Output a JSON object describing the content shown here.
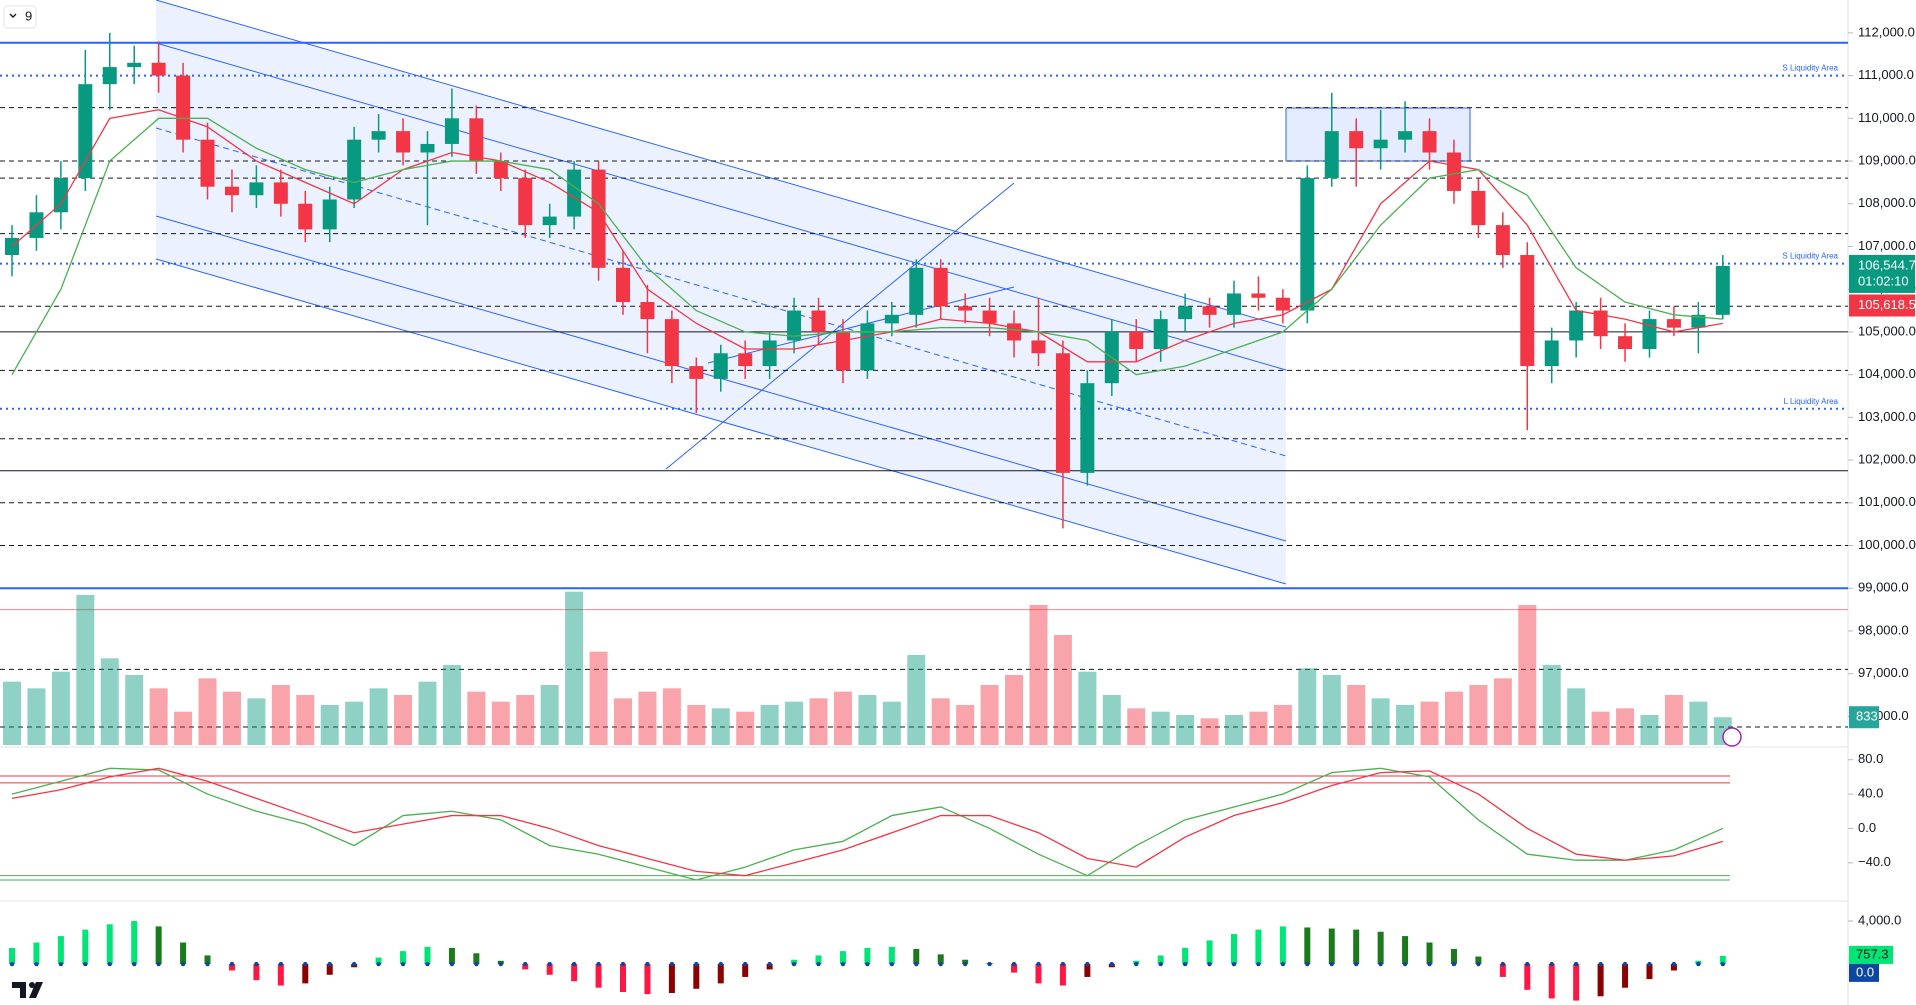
{
  "chart_data": {
    "type": "candlestick",
    "interval": "9",
    "ylim": [
      95330,
      112770
    ],
    "yticks": [
      {
        "value": 96000,
        "label": "96,000.0"
      },
      {
        "value": 97000,
        "label": "97,000.0"
      },
      {
        "value": 98000,
        "label": "98,000.0"
      },
      {
        "value": 99000,
        "label": "99,000.0"
      },
      {
        "value": 100000,
        "label": "100,000.0"
      },
      {
        "value": 101000,
        "label": "101,000.0"
      },
      {
        "value": 102000,
        "label": "102,000.0"
      },
      {
        "value": 103000,
        "label": "103,000.0"
      },
      {
        "value": 104000,
        "label": "104,000.0"
      },
      {
        "value": 105000,
        "label": "105,000.0"
      },
      {
        "value": 106000,
        "label": "106,000.0"
      },
      {
        "value": 107000,
        "label": "107,000.0"
      },
      {
        "value": 108000,
        "label": "108,000.0"
      },
      {
        "value": 109000,
        "label": "109,000.0"
      },
      {
        "value": 110000,
        "label": "110,000.0"
      },
      {
        "value": 111000,
        "label": "111,000.0"
      },
      {
        "value": 112000,
        "label": "112,000.0"
      }
    ],
    "up_color": "#089981",
    "down_color": "#f23645",
    "candles": [
      [
        106800,
        107500,
        106300,
        107200
      ],
      [
        107200,
        108200,
        106900,
        107800
      ],
      [
        107800,
        109000,
        107400,
        108600
      ],
      [
        108600,
        111600,
        108300,
        110800
      ],
      [
        110800,
        112000,
        110200,
        111200
      ],
      [
        111200,
        111700,
        110800,
        111300
      ],
      [
        111300,
        111800,
        110600,
        111000
      ],
      [
        111000,
        111300,
        109200,
        109500
      ],
      [
        109500,
        109900,
        108100,
        108400
      ],
      [
        108400,
        108800,
        107800,
        108200
      ],
      [
        108200,
        108900,
        107900,
        108500
      ],
      [
        108500,
        108800,
        107700,
        108000
      ],
      [
        108000,
        108300,
        107100,
        107400
      ],
      [
        107400,
        108400,
        107100,
        108100
      ],
      [
        108100,
        109800,
        107900,
        109500
      ],
      [
        109500,
        110100,
        109200,
        109700
      ],
      [
        109700,
        110000,
        108900,
        109200
      ],
      [
        109200,
        109700,
        107500,
        109400
      ],
      [
        109400,
        110700,
        109100,
        110000
      ],
      [
        110000,
        110300,
        108700,
        109000
      ],
      [
        109000,
        109200,
        108300,
        108600
      ],
      [
        108600,
        108800,
        107200,
        107500
      ],
      [
        107500,
        108000,
        107200,
        107700
      ],
      [
        107700,
        109000,
        107400,
        108800
      ],
      [
        108800,
        109000,
        106200,
        106500
      ],
      [
        106500,
        106900,
        105400,
        105700
      ],
      [
        105700,
        106100,
        104500,
        105300
      ],
      [
        105300,
        105500,
        103800,
        104200
      ],
      [
        104200,
        104400,
        103100,
        103900
      ],
      [
        103900,
        104700,
        103600,
        104500
      ],
      [
        104500,
        104800,
        103900,
        104200
      ],
      [
        104200,
        105000,
        103900,
        104800
      ],
      [
        104800,
        105800,
        104500,
        105500
      ],
      [
        105500,
        105800,
        104700,
        105000
      ],
      [
        105000,
        105300,
        103800,
        104100
      ],
      [
        104100,
        105500,
        103900,
        105200
      ],
      [
        105200,
        105700,
        104900,
        105400
      ],
      [
        105400,
        106700,
        105100,
        106500
      ],
      [
        106500,
        106700,
        105300,
        105600
      ],
      [
        105600,
        105900,
        105200,
        105500
      ],
      [
        105500,
        105800,
        104900,
        105200
      ],
      [
        105200,
        105500,
        104400,
        104800
      ],
      [
        104800,
        105800,
        104200,
        104500
      ],
      [
        104500,
        104800,
        100400,
        101700
      ],
      [
        101700,
        104100,
        101400,
        103800
      ],
      [
        103800,
        105300,
        103500,
        105000
      ],
      [
        105000,
        105300,
        104300,
        104600
      ],
      [
        104600,
        105500,
        104300,
        105300
      ],
      [
        105300,
        105900,
        105000,
        105600
      ],
      [
        105600,
        105800,
        105100,
        105400
      ],
      [
        105400,
        106200,
        105100,
        105900
      ],
      [
        105900,
        106300,
        105500,
        105800
      ],
      [
        105800,
        106000,
        105200,
        105500
      ],
      [
        105500,
        108900,
        105200,
        108600
      ],
      [
        108600,
        110600,
        108400,
        109700
      ],
      [
        109700,
        110000,
        108400,
        109300
      ],
      [
        109300,
        110200,
        108800,
        109500
      ],
      [
        109500,
        110400,
        109200,
        109700
      ],
      [
        109700,
        110000,
        108800,
        109200
      ],
      [
        109200,
        109500,
        108000,
        108300
      ],
      [
        108300,
        108600,
        107200,
        107500
      ],
      [
        107500,
        107800,
        106500,
        106800
      ],
      [
        106800,
        107100,
        102700,
        104200
      ],
      [
        104200,
        105100,
        103800,
        104800
      ],
      [
        104800,
        105700,
        104400,
        105500
      ],
      [
        105500,
        105800,
        104600,
        104900
      ],
      [
        104900,
        105200,
        104300,
        104600
      ],
      [
        104600,
        105500,
        104400,
        105300
      ],
      [
        105300,
        105600,
        104900,
        105100
      ],
      [
        105100,
        105700,
        104500,
        105400
      ],
      [
        105400,
        106800,
        105300,
        106544.7
      ]
    ],
    "moving_averages": [
      {
        "color": "#f23645",
        "values": [
          107000,
          108000,
          110000,
          110200,
          109800,
          109000,
          108500,
          108000,
          108800,
          109200,
          109000,
          108500,
          107800,
          106000,
          105200,
          104600,
          104600,
          104800,
          105000,
          105300,
          105200,
          105000,
          104300,
          104300,
          104800,
          105200,
          105400,
          106000,
          108000,
          109000,
          108800,
          107500,
          105500,
          105300,
          105000,
          105200
        ]
      },
      {
        "color": "#4caf50",
        "values": [
          104000,
          106000,
          109000,
          110000,
          110000,
          109300,
          108800,
          108500,
          108800,
          109000,
          109000,
          108800,
          108000,
          106500,
          105500,
          105000,
          104900,
          105000,
          105000,
          105100,
          105100,
          105000,
          104800,
          104000,
          104200,
          104600,
          105000,
          106000,
          107500,
          108600,
          108800,
          108200,
          106500,
          105700,
          105400,
          105300
        ]
      }
    ],
    "levels": [
      {
        "value": 111770,
        "style": "solid-blue"
      },
      {
        "value": 111000,
        "style": "dotted-blue",
        "label": "S Liquidity Area"
      },
      {
        "value": 110250,
        "style": "dashed"
      },
      {
        "value": 109000,
        "style": "dashed"
      },
      {
        "value": 108600,
        "style": "dashed"
      },
      {
        "value": 107300,
        "style": "dashed"
      },
      {
        "value": 106600,
        "style": "dotted-blue",
        "label": "S Liquidity Area"
      },
      {
        "value": 105600,
        "style": "dashed"
      },
      {
        "value": 105000,
        "style": "solid"
      },
      {
        "value": 104100,
        "style": "dashed"
      },
      {
        "value": 103200,
        "style": "dotted-blue",
        "label": "L Liquidity Area"
      },
      {
        "value": 102500,
        "style": "dashed"
      },
      {
        "value": 101750,
        "style": "solid"
      },
      {
        "value": 101000,
        "style": "dashed"
      },
      {
        "value": 100000,
        "style": "dashed"
      },
      {
        "value": 99000,
        "style": "solid-blue"
      },
      {
        "value": 98500,
        "style": "red"
      },
      {
        "value": 97100,
        "style": "dashed"
      },
      {
        "value": 95750,
        "style": "dashed"
      }
    ],
    "last_price": {
      "value": 106544.7,
      "label": "106,544.7",
      "timer": "01:02:10"
    },
    "reference_price": {
      "value": 105618.5,
      "label": "105,618.5"
    },
    "volume": {
      "vlim": [
        0,
        4800
      ],
      "last": 833,
      "values": [
        1900,
        1700,
        2200,
        4500,
        2600,
        2100,
        1700,
        1000,
        2000,
        1600,
        1400,
        1800,
        1500,
        1200,
        1300,
        1700,
        1500,
        1900,
        2400,
        1600,
        1300,
        1500,
        1800,
        4600,
        2800,
        1400,
        1600,
        1700,
        1200,
        1100,
        1000,
        1200,
        1300,
        1400,
        1600,
        1500,
        1300,
        2700,
        1400,
        1200,
        1800,
        2100,
        4200,
        3300,
        2200,
        1500,
        1100,
        1000,
        900,
        800,
        900,
        1000,
        1200,
        2300,
        2100,
        1800,
        1400,
        1200,
        1300,
        1600,
        1800,
        2000,
        4200,
        2400,
        1700,
        1000,
        1100,
        900,
        1500,
        1300,
        833
      ]
    },
    "oscillator": {
      "ylim": [
        -81,
        89
      ],
      "yticks": [
        {
          "value": 80,
          "label": "80.0"
        },
        {
          "value": 40,
          "label": "40.0"
        },
        {
          "value": 0,
          "label": "0.0"
        },
        {
          "value": -40,
          "label": "−40.0"
        }
      ],
      "levels": [
        61,
        53,
        -55,
        -60
      ],
      "series": [
        {
          "color": "#4caf50",
          "values": [
            40,
            55,
            70,
            68,
            40,
            20,
            5,
            -20,
            15,
            20,
            10,
            -20,
            -30,
            -45,
            -60,
            -45,
            -25,
            -15,
            15,
            25,
            0,
            -30,
            -55,
            -20,
            10,
            25,
            40,
            65,
            70,
            60,
            10,
            -30,
            -37,
            -37,
            -25,
            0
          ]
        },
        {
          "color": "#f23645",
          "values": [
            35,
            45,
            60,
            70,
            55,
            35,
            15,
            -5,
            5,
            15,
            15,
            0,
            -20,
            -35,
            -50,
            -55,
            -40,
            -25,
            -5,
            15,
            15,
            -5,
            -35,
            -45,
            -10,
            15,
            30,
            50,
            65,
            67,
            40,
            0,
            -30,
            -37,
            -32,
            -15
          ]
        }
      ]
    },
    "histogram": {
      "ylim": [
        -3810,
        5490
      ],
      "yticks": [
        {
          "value": 4000,
          "label": "4,000.0"
        }
      ],
      "values": [
        1500,
        2000,
        2600,
        3200,
        3700,
        4000,
        3500,
        2000,
        800,
        -600,
        -1500,
        -2000,
        -1800,
        -1000,
        -300,
        600,
        1200,
        1600,
        1500,
        1000,
        300,
        -500,
        -1000,
        -1600,
        -2200,
        -2600,
        -2800,
        -2700,
        -2300,
        -1800,
        -1200,
        -500,
        400,
        800,
        1200,
        1500,
        1600,
        1400,
        900,
        400,
        100,
        -800,
        -1800,
        -2000,
        -1200,
        -300,
        300,
        800,
        1500,
        2200,
        2800,
        3200,
        3500,
        3400,
        3300,
        3200,
        3000,
        2600,
        2000,
        1400,
        700,
        -1200,
        -2400,
        -3200,
        -3400,
        -3000,
        -2200,
        -1400,
        -600,
        300,
        757.3
      ],
      "signal": {
        "value": 0,
        "label": "0.0"
      }
    }
  }
}
